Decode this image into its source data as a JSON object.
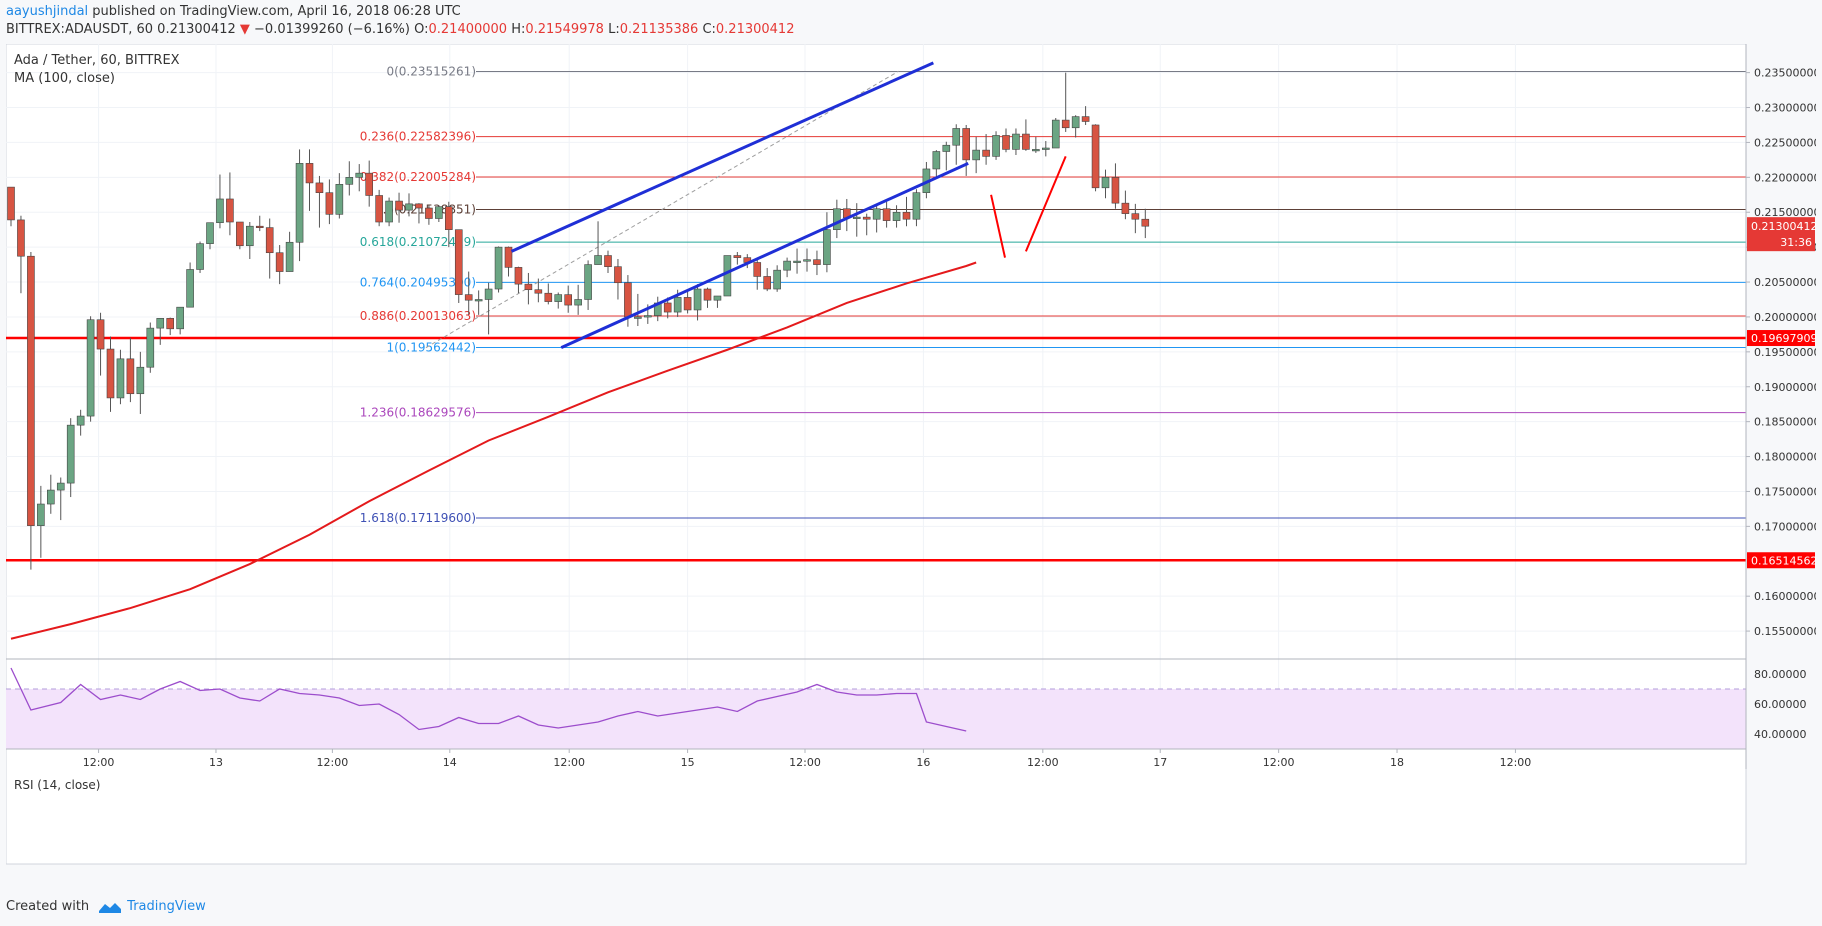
{
  "header": {
    "author": "aayushjindal",
    "published": " published on TradingView.com, April 16, 2018 06:28 UTC"
  },
  "symbol_line": {
    "symbol": "BITTREX:ADAUSDT, 60",
    "last": "0.21300412",
    "arrow": "▼",
    "change": "−0.01399260 (−6.16%)",
    "o_label": "O:",
    "o": "0.21400000",
    "h_label": "H:",
    "h": "0.21549978",
    "l_label": "L:",
    "l": "0.21135386",
    "c_label": "C:",
    "c": "0.21300412"
  },
  "legend": {
    "title": "Ada / Tether, 60, BITTREX",
    "ma": "MA (100, close)",
    "rsi": "RSI (14, close)"
  },
  "footer": {
    "created": "Created with",
    "brand": "TradingView"
  },
  "colors": {
    "up": "#6ba583",
    "down": "#d75442",
    "ma": "#e41a1c",
    "channel": "#1f2fd6",
    "support": "#ff0000",
    "rsi": "#9c4dcc",
    "rsi_fill": "#f3e3fb",
    "price_badge": "#e53935"
  },
  "chart_data": {
    "type": "candlestick",
    "ylim": [
      0.151,
      0.2391
    ],
    "price_ticks": [
      "0.23500000",
      "0.23000000",
      "0.22500000",
      "0.22000000",
      "0.21500000",
      "0.21000000",
      "0.20500000",
      "0.20000000",
      "0.19500000",
      "0.19000000",
      "0.18500000",
      "0.18000000",
      "0.17500000",
      "0.17000000",
      "0.16000000",
      "0.15500000"
    ],
    "time_labels": [
      {
        "t": 8.8,
        "label": "12:00"
      },
      {
        "t": 20.6,
        "label": "13"
      },
      {
        "t": 32.3,
        "label": "12:00"
      },
      {
        "t": 44.1,
        "label": "14"
      },
      {
        "t": 56.1,
        "label": "12:00"
      },
      {
        "t": 68.0,
        "label": "15"
      },
      {
        "t": 79.8,
        "label": "12:00"
      },
      {
        "t": 91.7,
        "label": "16"
      },
      {
        "t": 103.7,
        "label": "12:00"
      },
      {
        "t": 115.5,
        "label": "17"
      },
      {
        "t": 127.4,
        "label": "12:00"
      },
      {
        "t": 139.3,
        "label": "18"
      },
      {
        "t": 151.2,
        "label": "12:00"
      }
    ],
    "candles": [
      [
        0.2186,
        0.2185,
        0.213,
        0.2139
      ],
      [
        0.2139,
        0.2145,
        0.2034,
        0.2087
      ],
      [
        0.2087,
        0.2093,
        0.1638,
        0.1701
      ],
      [
        0.1701,
        0.1758,
        0.1655,
        0.1732
      ],
      [
        0.1732,
        0.1774,
        0.1718,
        0.1752
      ],
      [
        0.1752,
        0.177,
        0.1709,
        0.1762
      ],
      [
        0.1762,
        0.1855,
        0.1742,
        0.1845
      ],
      [
        0.1845,
        0.1867,
        0.183,
        0.1858
      ],
      [
        0.1858,
        0.2001,
        0.185,
        0.1996
      ],
      [
        0.1996,
        0.2006,
        0.1916,
        0.1954
      ],
      [
        0.1954,
        0.1972,
        0.1864,
        0.1884
      ],
      [
        0.1884,
        0.1953,
        0.1875,
        0.194
      ],
      [
        0.194,
        0.197,
        0.1878,
        0.189
      ],
      [
        0.189,
        0.195,
        0.1861,
        0.1928
      ],
      [
        0.1928,
        0.1992,
        0.192,
        0.1984
      ],
      [
        0.1984,
        0.1998,
        0.196,
        0.1998
      ],
      [
        0.1998,
        0.1999,
        0.1974,
        0.1983
      ],
      [
        0.1983,
        0.2014,
        0.1975,
        0.2014
      ],
      [
        0.2014,
        0.2078,
        0.2014,
        0.2068
      ],
      [
        0.2068,
        0.2108,
        0.2063,
        0.2105
      ],
      [
        0.2105,
        0.213,
        0.2097,
        0.2135
      ],
      [
        0.2135,
        0.2204,
        0.2127,
        0.2169
      ],
      [
        0.2169,
        0.2207,
        0.2117,
        0.2136
      ],
      [
        0.2136,
        0.2136,
        0.2097,
        0.2102
      ],
      [
        0.2102,
        0.2136,
        0.2083,
        0.213
      ],
      [
        0.213,
        0.2145,
        0.2123,
        0.2128
      ],
      [
        0.2128,
        0.2141,
        0.2055,
        0.2092
      ],
      [
        0.2092,
        0.2103,
        0.2047,
        0.2065
      ],
      [
        0.2065,
        0.2122,
        0.2065,
        0.2107
      ],
      [
        0.2107,
        0.224,
        0.208,
        0.222
      ],
      [
        0.222,
        0.224,
        0.2152,
        0.2192
      ],
      [
        0.2192,
        0.2202,
        0.2128,
        0.2178
      ],
      [
        0.2178,
        0.2197,
        0.2133,
        0.2147
      ],
      [
        0.2147,
        0.2206,
        0.2141,
        0.219
      ],
      [
        0.219,
        0.2223,
        0.2174,
        0.22
      ],
      [
        0.22,
        0.2219,
        0.218,
        0.2206
      ],
      [
        0.2206,
        0.2224,
        0.2158,
        0.2174
      ],
      [
        0.2174,
        0.2182,
        0.213,
        0.2136
      ],
      [
        0.2136,
        0.2171,
        0.213,
        0.2166
      ],
      [
        0.2166,
        0.2178,
        0.2135,
        0.2153
      ],
      [
        0.2153,
        0.2177,
        0.2144,
        0.2162
      ],
      [
        0.2162,
        0.2163,
        0.2134,
        0.2156
      ],
      [
        0.2156,
        0.216,
        0.2132,
        0.2141
      ],
      [
        0.2141,
        0.216,
        0.2136,
        0.2158
      ],
      [
        0.2158,
        0.2165,
        0.21,
        0.2125
      ],
      [
        0.2125,
        0.2125,
        0.202,
        0.2032
      ],
      [
        0.2032,
        0.2065,
        0.2003,
        0.2024
      ],
      [
        0.2024,
        0.2038,
        0.2003,
        0.2025
      ],
      [
        0.2025,
        0.2049,
        0.1975,
        0.204
      ],
      [
        0.204,
        0.2101,
        0.2035,
        0.21
      ],
      [
        0.21,
        0.2101,
        0.2058,
        0.2071
      ],
      [
        0.2071,
        0.2072,
        0.2034,
        0.2047
      ],
      [
        0.2047,
        0.2063,
        0.2018,
        0.2039
      ],
      [
        0.2039,
        0.2055,
        0.2021,
        0.2034
      ],
      [
        0.2034,
        0.2048,
        0.2018,
        0.2022
      ],
      [
        0.2022,
        0.2035,
        0.2012,
        0.2032
      ],
      [
        0.2032,
        0.2045,
        0.2006,
        0.2017
      ],
      [
        0.2017,
        0.2046,
        0.2003,
        0.2025
      ],
      [
        0.2025,
        0.2081,
        0.201,
        0.2075
      ],
      [
        0.2075,
        0.2137,
        0.2075,
        0.2088
      ],
      [
        0.2088,
        0.2095,
        0.2063,
        0.2072
      ],
      [
        0.2072,
        0.2083,
        0.2025,
        0.2049
      ],
      [
        0.2049,
        0.206,
        0.1986,
        0.2
      ],
      [
        0.2,
        0.2033,
        0.1987,
        0.2
      ],
      [
        0.2,
        0.2018,
        0.199,
        0.2002
      ],
      [
        0.2002,
        0.2029,
        0.1994,
        0.202
      ],
      [
        0.202,
        0.2028,
        0.1998,
        0.2007
      ],
      [
        0.2007,
        0.2039,
        0.2,
        0.2028
      ],
      [
        0.2028,
        0.2038,
        0.2005,
        0.201
      ],
      [
        0.201,
        0.2047,
        0.1995,
        0.204
      ],
      [
        0.204,
        0.2042,
        0.2013,
        0.2024
      ],
      [
        0.2024,
        0.203,
        0.2013,
        0.203
      ],
      [
        0.203,
        0.2088,
        0.203,
        0.2088
      ],
      [
        0.2088,
        0.2093,
        0.2075,
        0.2085
      ],
      [
        0.2085,
        0.209,
        0.207,
        0.2078
      ],
      [
        0.2078,
        0.2085,
        0.2039,
        0.2058
      ],
      [
        0.2058,
        0.207,
        0.2037,
        0.204
      ],
      [
        0.204,
        0.2074,
        0.2036,
        0.2067
      ],
      [
        0.2067,
        0.2085,
        0.2057,
        0.208
      ],
      [
        0.208,
        0.2098,
        0.2062,
        0.208
      ],
      [
        0.208,
        0.2098,
        0.2065,
        0.2082
      ],
      [
        0.2082,
        0.2095,
        0.206,
        0.2075
      ],
      [
        0.2075,
        0.215,
        0.2064,
        0.2125
      ],
      [
        0.2125,
        0.2168,
        0.2113,
        0.2155
      ],
      [
        0.2155,
        0.2169,
        0.2123,
        0.2142
      ],
      [
        0.2142,
        0.2163,
        0.2115,
        0.2143
      ],
      [
        0.2143,
        0.2148,
        0.2117,
        0.214
      ],
      [
        0.214,
        0.2162,
        0.2121,
        0.2155
      ],
      [
        0.2155,
        0.2165,
        0.2128,
        0.2138
      ],
      [
        0.2138,
        0.216,
        0.2128,
        0.215
      ],
      [
        0.215,
        0.2172,
        0.213,
        0.214
      ],
      [
        0.214,
        0.2183,
        0.213,
        0.2178
      ],
      [
        0.2178,
        0.2222,
        0.217,
        0.2212
      ],
      [
        0.2212,
        0.2239,
        0.22,
        0.2237
      ],
      [
        0.2237,
        0.2251,
        0.221,
        0.2246
      ],
      [
        0.2246,
        0.2276,
        0.2218,
        0.227
      ],
      [
        0.227,
        0.2275,
        0.2202,
        0.2225
      ],
      [
        0.2225,
        0.2258,
        0.2206,
        0.2239
      ],
      [
        0.2239,
        0.2262,
        0.2218,
        0.223
      ],
      [
        0.223,
        0.2266,
        0.2225,
        0.226
      ],
      [
        0.226,
        0.227,
        0.2236,
        0.224
      ],
      [
        0.224,
        0.227,
        0.2232,
        0.2262
      ],
      [
        0.2262,
        0.2283,
        0.2238,
        0.224
      ],
      [
        0.224,
        0.2258,
        0.2235,
        0.224
      ],
      [
        0.224,
        0.2252,
        0.223,
        0.2242
      ],
      [
        0.2242,
        0.2285,
        0.2242,
        0.2282
      ],
      [
        0.2282,
        0.235,
        0.2265,
        0.2271
      ],
      [
        0.2271,
        0.2289,
        0.2257,
        0.2287
      ],
      [
        0.2287,
        0.2302,
        0.2275,
        0.228
      ],
      [
        0.2275,
        0.2276,
        0.218,
        0.2185
      ],
      [
        0.2185,
        0.2211,
        0.217,
        0.22
      ],
      [
        0.22,
        0.222,
        0.2155,
        0.2163
      ],
      [
        0.2163,
        0.2181,
        0.214,
        0.2148
      ],
      [
        0.2148,
        0.2162,
        0.212,
        0.214
      ],
      [
        0.214,
        0.2155,
        0.2113,
        0.213
      ]
    ],
    "candle_t0": 0,
    "ma100": [
      [
        0,
        0.1539
      ],
      [
        6,
        0.156
      ],
      [
        12,
        0.1583
      ],
      [
        18,
        0.161
      ],
      [
        24,
        0.1646
      ],
      [
        30,
        0.1688
      ],
      [
        36,
        0.1736
      ],
      [
        42,
        0.178
      ],
      [
        48,
        0.1823
      ],
      [
        54,
        0.1857
      ],
      [
        60,
        0.1892
      ],
      [
        66,
        0.1923
      ],
      [
        72,
        0.1953
      ],
      [
        78,
        0.1985
      ],
      [
        84,
        0.202
      ],
      [
        90,
        0.2048
      ],
      [
        96,
        0.2073
      ],
      [
        97,
        0.2078
      ]
    ],
    "fib_levels": [
      {
        "label": "0(0.23515261)",
        "value": 0.23515261,
        "color": "#787b86"
      },
      {
        "label": "0.236(0.22582396)",
        "value": 0.22582396,
        "color": "#e53935"
      },
      {
        "label": "0.382(0.22005284)",
        "value": 0.22005284,
        "color": "#e53935"
      },
      {
        "label": "0.5(0.21538851)",
        "value": 0.21538851,
        "color": "#5d4037"
      },
      {
        "label": "0.618(0.21072419)",
        "value": 0.21072419,
        "color": "#26a69a"
      },
      {
        "label": "0.764(0.20495300)",
        "value": 0.204953,
        "color": "#2196f3"
      },
      {
        "label": "0.886(0.20013063)",
        "value": 0.20013063,
        "color": "#e53935"
      },
      {
        "label": "1(0.19562442)",
        "value": 0.19562442,
        "color": "#2196f3"
      },
      {
        "label": "1.236(0.18629576)",
        "value": 0.18629576,
        "color": "#ab47bc"
      },
      {
        "label": "1.618(0.17119600)",
        "value": 0.171196,
        "color": "#3f51b5"
      }
    ],
    "support_lines": [
      {
        "label": "0.19697909",
        "value": 0.19697909
      },
      {
        "label": "0.16514562",
        "value": 0.16514562
      }
    ],
    "last_price": {
      "label": "0.21300412",
      "value": 0.21300412,
      "timer": "31:36"
    },
    "channel": [
      [
        [
          50.3,
          0.2094
        ],
        [
          92.7,
          0.2364
        ]
      ],
      [
        [
          55.3,
          0.1956
        ],
        [
          96.2,
          0.222
        ]
      ]
    ],
    "fib_trend": [
      [
        41.7,
        0.1956
      ],
      [
        89.2,
        0.2352
      ]
    ],
    "projection": [
      [
        [
          98.5,
          0.2175
        ],
        [
          99.9,
          0.2085
        ]
      ],
      [
        [
          102.0,
          0.2094
        ],
        [
          106.0,
          0.223
        ]
      ]
    ],
    "rsi": {
      "ylim": [
        30,
        90
      ],
      "ticks": [
        "80.00000",
        "60.00000",
        "40.00000"
      ],
      "band": [
        30,
        70
      ],
      "values": [
        [
          0,
          84
        ],
        [
          2,
          56
        ],
        [
          5,
          61
        ],
        [
          7,
          73
        ],
        [
          9,
          63
        ],
        [
          11,
          66
        ],
        [
          13,
          63
        ],
        [
          15,
          70
        ],
        [
          17,
          75
        ],
        [
          19,
          69
        ],
        [
          21,
          70
        ],
        [
          23,
          64
        ],
        [
          25,
          62
        ],
        [
          27,
          70
        ],
        [
          29,
          67
        ],
        [
          31,
          66
        ],
        [
          33,
          64
        ],
        [
          35,
          59
        ],
        [
          37,
          60
        ],
        [
          39,
          53
        ],
        [
          41,
          43
        ],
        [
          43,
          45
        ],
        [
          45,
          51
        ],
        [
          47,
          47
        ],
        [
          49,
          47
        ],
        [
          51,
          52
        ],
        [
          53,
          46
        ],
        [
          55,
          44
        ],
        [
          57,
          46
        ],
        [
          59,
          48
        ],
        [
          61,
          52
        ],
        [
          63,
          55
        ],
        [
          65,
          52
        ],
        [
          67,
          54
        ],
        [
          69,
          56
        ],
        [
          71,
          58
        ],
        [
          73,
          55
        ],
        [
          75,
          62
        ],
        [
          77,
          65
        ],
        [
          79,
          68
        ],
        [
          81,
          73
        ],
        [
          83,
          68
        ],
        [
          85,
          66
        ],
        [
          87,
          66
        ],
        [
          89,
          67
        ],
        [
          91,
          67
        ],
        [
          92,
          48
        ],
        [
          94,
          45
        ],
        [
          96,
          42
        ]
      ]
    }
  }
}
